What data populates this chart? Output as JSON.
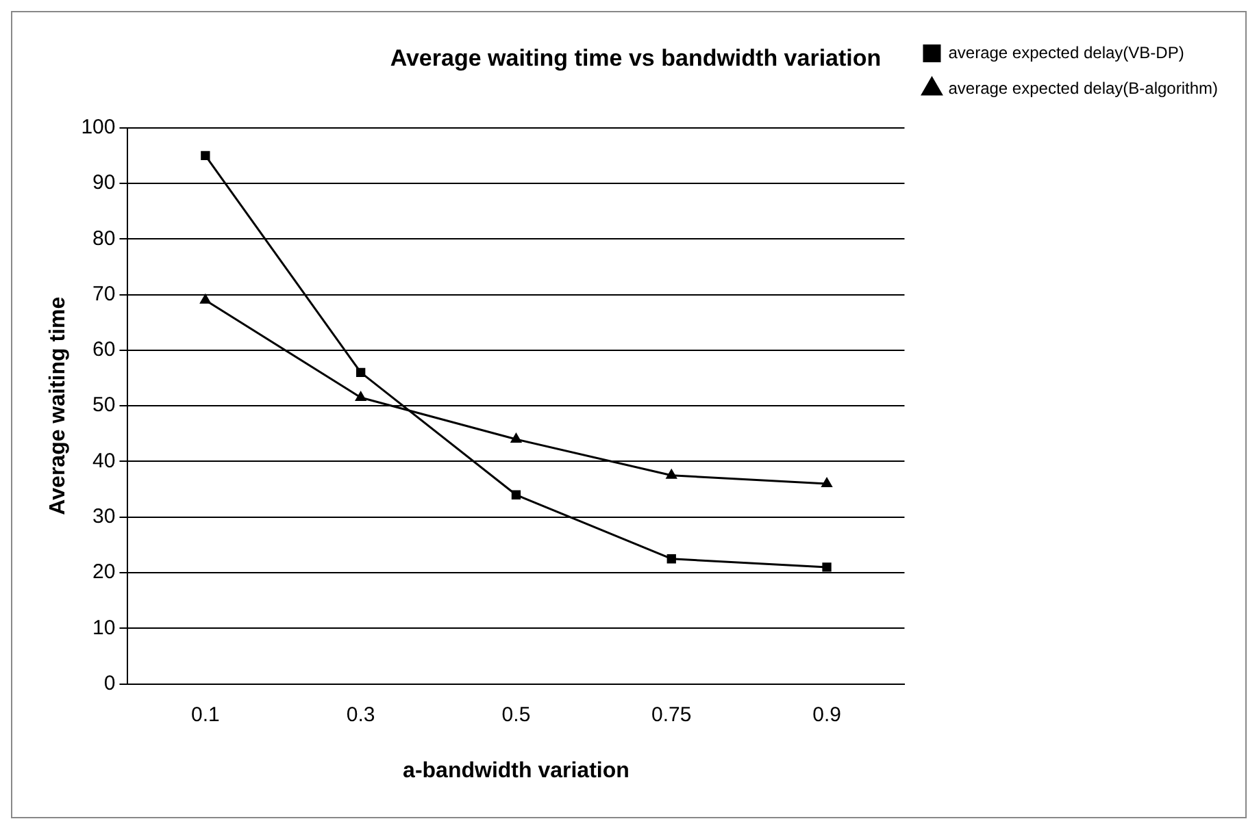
{
  "chart_data": {
    "type": "line",
    "title": "Average waiting time vs bandwidth variation",
    "xlabel": "a-bandwidth variation",
    "ylabel": "Average waiting time",
    "categories": [
      "0.1",
      "0.3",
      "0.5",
      "0.75",
      "0.9"
    ],
    "series": [
      {
        "name": "average expected delay(VB-DP)",
        "color": "#000000",
        "marker": "square",
        "values": [
          95,
          56,
          34,
          22.5,
          21
        ]
      },
      {
        "name": "average expected delay(B-algorithm)",
        "color": "#000000",
        "marker": "triangle",
        "values": [
          69,
          51.5,
          44,
          37.5,
          36
        ]
      }
    ],
    "ylim": [
      0,
      100
    ],
    "yticks": [
      0,
      10,
      20,
      30,
      40,
      50,
      60,
      70,
      80,
      90,
      100
    ],
    "grid": "y",
    "legend": "right",
    "line_style": "solid"
  }
}
